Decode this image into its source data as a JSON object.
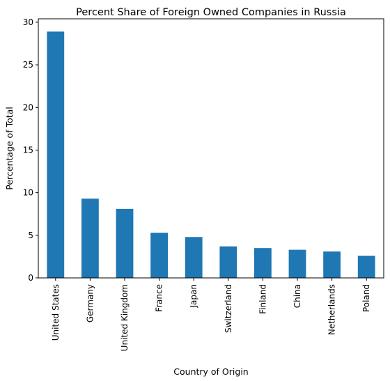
{
  "chart_data": {
    "type": "bar",
    "title": "Percent Share of Foreign Owned Companies in Russia",
    "xlabel": "Country of Origin",
    "ylabel": "Percentage of Total",
    "categories": [
      "United States",
      "Germany",
      "United Kingdom",
      "France",
      "Japan",
      "Switzerland",
      "Finland",
      "China",
      "Netherlands",
      "Poland"
    ],
    "values": [
      28.9,
      9.3,
      8.1,
      5.3,
      4.8,
      3.7,
      3.5,
      3.3,
      3.1,
      2.6
    ],
    "ylim": [
      0,
      30.4
    ],
    "yticks": [
      0,
      5,
      10,
      15,
      20,
      25,
      30
    ],
    "color": "#1f77b4",
    "grid": false,
    "legend": "none"
  }
}
